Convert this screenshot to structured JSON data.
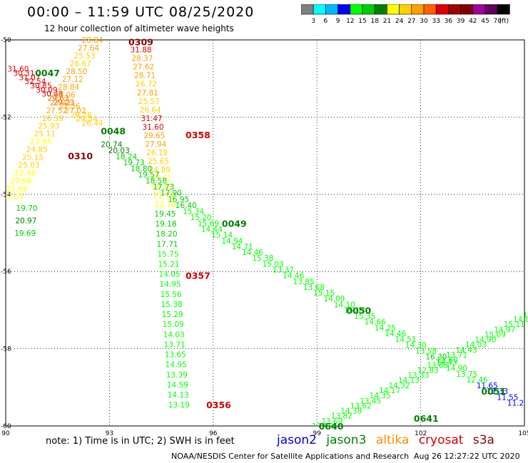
{
  "header": {
    "title": "00:00 – 11:59 UTC 08/25/2020",
    "subtitle": "12 hour collection of altimeter wave heights"
  },
  "colorbar": {
    "unit": "(ft)",
    "bins": [
      {
        "color": "#808080",
        "label": "3"
      },
      {
        "color": "#00ffff",
        "label": "6"
      },
      {
        "color": "#00b8ff",
        "label": "9"
      },
      {
        "color": "#0000ff",
        "label": "12"
      },
      {
        "color": "#00ff00",
        "label": "15"
      },
      {
        "color": "#00cc00",
        "label": "18"
      },
      {
        "color": "#008000",
        "label": "21"
      },
      {
        "color": "#ffff00",
        "label": "24"
      },
      {
        "color": "#ffd000",
        "label": "27"
      },
      {
        "color": "#ffa000",
        "label": "30"
      },
      {
        "color": "#ff6000",
        "label": "33"
      },
      {
        "color": "#e00000",
        "label": "36"
      },
      {
        "color": "#a00000",
        "label": "39"
      },
      {
        "color": "#800000",
        "label": "42"
      },
      {
        "color": "#a000a0",
        "label": "45"
      },
      {
        "color": "#600060",
        "label": "70"
      },
      {
        "color": "#000000",
        "label": ""
      }
    ]
  },
  "footer": {
    "note": "note:  1) Time is in UTC;  2) SWH is in feet",
    "legend": [
      {
        "name": "jason2",
        "color": "#0000cc"
      },
      {
        "name": "jason3",
        "color": "#008000"
      },
      {
        "name": "altika",
        "color": "#ff8c00"
      },
      {
        "name": "cryosat",
        "color": "#cc0000"
      },
      {
        "name": "s3a",
        "color": "#8b0000"
      }
    ],
    "credit": "NOAA/NESDIS Center for Satellite Applications and Research",
    "timestamp": "Aug 26 12:27:22 UTC 2020"
  },
  "chart_data": {
    "type": "scatter",
    "xlim": [
      90,
      105
    ],
    "ylim": [
      -60,
      -50
    ],
    "x_ticks": [
      90,
      93,
      96,
      99,
      102,
      105
    ],
    "x_tick_labels": [
      "90",
      "93",
      "96",
      "99",
      "102",
      "105"
    ],
    "y_ticks": [
      -50,
      -52,
      -54,
      -56,
      -58,
      -60
    ],
    "y_tick_labels": [
      "-50",
      "-52",
      "-54",
      "-56",
      "-58",
      "-60"
    ],
    "grid": true,
    "time_labels": [
      {
        "text": "0309",
        "x": 93.55,
        "y": -50.05,
        "color": "#8b0000"
      },
      {
        "text": "0047",
        "x": 90.85,
        "y": -50.85,
        "color": "#008000"
      },
      {
        "text": "0048",
        "x": 92.75,
        "y": -52.35,
        "color": "#008000"
      },
      {
        "text": "0358",
        "x": 95.2,
        "y": -52.45,
        "color": "#cc0000"
      },
      {
        "text": "0310",
        "x": 91.8,
        "y": -53.0,
        "color": "#8b0000"
      },
      {
        "text": "0049",
        "x": 96.25,
        "y": -54.75,
        "color": "#008000"
      },
      {
        "text": "0357",
        "x": 95.2,
        "y": -56.1,
        "color": "#cc0000"
      },
      {
        "text": "0050",
        "x": 99.85,
        "y": -57.0,
        "color": "#008000"
      },
      {
        "text": "0356",
        "x": 95.8,
        "y": -59.45,
        "color": "#cc0000"
      },
      {
        "text": "0051",
        "x": 103.75,
        "y": -59.1,
        "color": "#008000"
      },
      {
        "text": "0641",
        "x": 101.8,
        "y": -59.8,
        "color": "#008000"
      },
      {
        "text": "0640",
        "x": 99.05,
        "y": -60.0,
        "color": "#008000"
      }
    ],
    "tracks": [
      {
        "satellite": "cryosat",
        "x_start": 90.05,
        "y_start": -50.75,
        "x_end": 92.2,
        "y_end": -52.15,
        "values": [
          "31.60",
          "30.31",
          "31.07",
          "32.54",
          "30.85",
          "30.09",
          "30.48",
          "29.63",
          "29.23",
          "27.36",
          "27.02",
          "26.28",
          "29.54",
          "26.44"
        ],
        "colors": [
          "#e00000",
          "#e00000",
          "#e00000",
          "#e00000",
          "#e00000",
          "#e00000",
          "#e00000",
          "#ff6000",
          "#ff6000",
          "#ffa000",
          "#ffa000",
          "#ffd000",
          "#ffd000",
          "#ffd000"
        ]
      },
      {
        "satellite": "altika",
        "x_start": 92.2,
        "y_start": -50.0,
        "x_end": 89.9,
        "y_end": -54.05,
        "values": [
          "28.84",
          "27.64",
          "25.53",
          "26.67",
          "28.50",
          "27.12",
          "28.84",
          "28.06",
          "27.42",
          "27.52",
          "26.39",
          "25.93",
          "25.11",
          "23.95",
          "24.85",
          "25.15",
          "25.03",
          "22.46",
          "20.98",
          "21.66",
          "22.05"
        ],
        "colors": [
          "#ffa000",
          "#ffa000",
          "#ffd000",
          "#ffd000",
          "#ffa000",
          "#ffa000",
          "#ffa000",
          "#ffa000",
          "#ffa000",
          "#ffa000",
          "#ffd000",
          "#ffd000",
          "#ffd000",
          "#ffff00",
          "#ffd000",
          "#ffd000",
          "#ffd000",
          "#ffff00",
          "#ffff00",
          "#ffff00",
          "#ffff00"
        ]
      },
      {
        "satellite": "jason3",
        "x_start": 90.3,
        "y_start": -54.35,
        "x_end": 90.25,
        "y_end": -55.0,
        "values": [
          "19.70",
          "20.97",
          "19.69"
        ],
        "colors": [
          "#00cc00",
          "#008000",
          "#00cc00"
        ]
      },
      {
        "satellite": "altika",
        "x_start": 93.6,
        "y_start": -50.25,
        "x_end": 94.3,
        "y_end": -54.25,
        "values": [
          "31.88",
          "28.37",
          "27.62",
          "28.71",
          "26.72",
          "27.81",
          "25.57",
          "26.64",
          "31.47",
          "31.60",
          "29.65",
          "27.94",
          "26.18",
          "25.65",
          "24.89",
          "23.61",
          "22.55",
          "21.73",
          "22.18"
        ],
        "colors": [
          "#e00000",
          "#ffa000",
          "#ffa000",
          "#ffa000",
          "#ffd000",
          "#ffa000",
          "#ffd000",
          "#ffd000",
          "#e00000",
          "#e00000",
          "#ffa000",
          "#ffa000",
          "#ffd000",
          "#ffd000",
          "#ffd000",
          "#ffff00",
          "#ffff00",
          "#ffff00",
          "#ffff00"
        ]
      },
      {
        "satellite": "jason3",
        "x_start": 92.75,
        "y_start": -52.7,
        "x_end": 95.55,
        "y_end": -54.75,
        "values": [
          "20.74",
          "20.03",
          "18.24",
          "19.73",
          "18.80",
          "19.57",
          "18.58",
          "17.73",
          "17.90",
          "16.95",
          "16.40",
          "15.34",
          "15.20",
          "15.69"
        ],
        "colors": [
          "#008000",
          "#008000",
          "#00cc00",
          "#00cc00",
          "#00cc00",
          "#00cc00",
          "#00cc00",
          "#00cc00",
          "#00cc00",
          "#00cc00",
          "#00cc00",
          "#00ff00",
          "#00ff00",
          "#00ff00"
        ]
      },
      {
        "satellite": "jason3",
        "x_start": 95.65,
        "y_start": -54.9,
        "x_end": 104.5,
        "y_end": -59.4,
        "values": [
          "14.44",
          "15.14",
          "14.94",
          "14.71",
          "14.46",
          "15.38",
          "15.03",
          "13.37",
          "14.46",
          "13.85",
          "13.68",
          "15.15",
          "14.09",
          "14.10",
          "15.03",
          "15.35",
          "14.66",
          "14.25",
          "14.46",
          "14.51",
          "14.30",
          "13.58",
          "16.30",
          "14.43",
          "14.90",
          "13.75",
          "12.46",
          "11.65",
          "11.33",
          "11.55",
          "11.2"
        ],
        "colors": [
          "#00ff00",
          "#00ff00",
          "#00ff00",
          "#00ff00",
          "#00ff00",
          "#00ff00",
          "#00ff00",
          "#00ff00",
          "#00ff00",
          "#00ff00",
          "#00ff00",
          "#00ff00",
          "#00ff00",
          "#00ff00",
          "#00ff00",
          "#00ff00",
          "#00ff00",
          "#00ff00",
          "#00ff00",
          "#00ff00",
          "#00ff00",
          "#00ff00",
          "#00cc00",
          "#00ff00",
          "#00ff00",
          "#00ff00",
          "#00ff00",
          "#0000ff",
          "#0000ff",
          "#0000ff",
          "#0000ff"
        ]
      },
      {
        "satellite": "jason3",
        "x_start": 94.3,
        "y_start": -54.5,
        "x_end": 94.7,
        "y_end": -59.45,
        "values": [
          "19.45",
          "19.18",
          "18.20",
          "17.71",
          "15.75",
          "15.21",
          "14.05",
          "14.95",
          "15.56",
          "15.38",
          "15.29",
          "15.09",
          "14.03",
          "13.71",
          "13.65",
          "14.95",
          "13.39",
          "14.59",
          "14.13",
          "13.19"
        ],
        "colors": [
          "#00cc00",
          "#00cc00",
          "#00cc00",
          "#00cc00",
          "#00ff00",
          "#00ff00",
          "#00ff00",
          "#00ff00",
          "#00ff00",
          "#00ff00",
          "#00ff00",
          "#00ff00",
          "#00ff00",
          "#00ff00",
          "#00ff00",
          "#00ff00",
          "#00ff00",
          "#00ff00",
          "#00ff00",
          "#00ff00"
        ]
      },
      {
        "satellite": "jason3",
        "x_start": 98.85,
        "y_start": -60.0,
        "x_end": 104.95,
        "y_end": -57.1,
        "values": [
          "13.58",
          "13.69",
          "13.82",
          "14.38",
          "13.62",
          "13.45",
          "14.35",
          "14.17",
          "14.32",
          "14.13",
          "13.33",
          "12.83",
          "13.68",
          "13.60",
          "13.71",
          "14.43",
          "14.03",
          "14.90",
          "15.09",
          "14.97",
          "15.11",
          "14.88",
          "15."
        ],
        "colors": [
          "#00ff00",
          "#00ff00",
          "#00ff00",
          "#00ff00",
          "#00ff00",
          "#00ff00",
          "#00ff00",
          "#00ff00",
          "#00ff00",
          "#00ff00",
          "#00ff00",
          "#00ff00",
          "#00ff00",
          "#00ff00",
          "#00ff00",
          "#00ff00",
          "#00ff00",
          "#00ff00",
          "#00ff00",
          "#00ff00",
          "#00ff00",
          "#00ff00",
          "#00ff00"
        ]
      }
    ]
  }
}
